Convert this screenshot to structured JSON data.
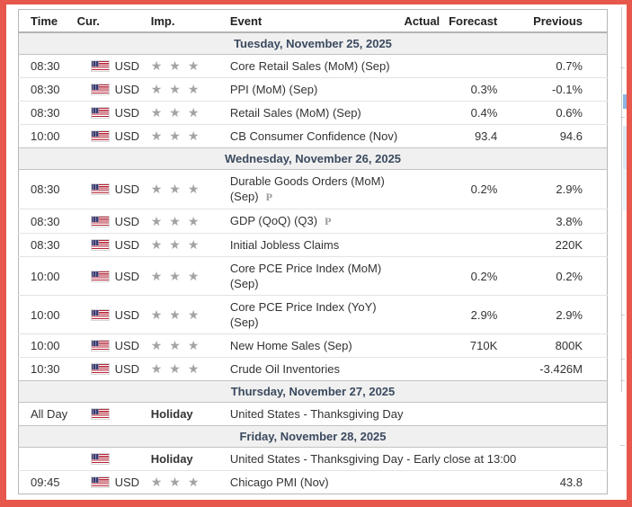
{
  "colors": {
    "frame_border": "#e8574b",
    "day_header_bg": "#f0f0f0",
    "day_header_text": "#3b4a5f",
    "star_gray": "#a3a3a3",
    "flag_red": "#b22234",
    "flag_blue": "#3c3b6e"
  },
  "icons": {
    "star": "★",
    "preliminary": "P",
    "flag": "us-flag"
  },
  "table": {
    "columns": [
      {
        "label": "Time"
      },
      {
        "label": "Cur."
      },
      {
        "label": "Imp."
      },
      {
        "label": "Event"
      },
      {
        "label": "Actual"
      },
      {
        "label": "Forecast"
      },
      {
        "label": "Previous"
      }
    ],
    "groups": [
      {
        "date": "Tuesday, November 25, 2025",
        "rows": [
          {
            "time": "08:30",
            "flag": true,
            "cur": "USD",
            "stars": 3,
            "event": "Core Retail Sales (MoM) (Sep)",
            "actual": "",
            "forecast": "",
            "previous": "0.7%"
          },
          {
            "time": "08:30",
            "flag": true,
            "cur": "USD",
            "stars": 3,
            "event": "PPI (MoM) (Sep)",
            "actual": "",
            "forecast": "0.3%",
            "previous": "-0.1%"
          },
          {
            "time": "08:30",
            "flag": true,
            "cur": "USD",
            "stars": 3,
            "event": "Retail Sales (MoM) (Sep)",
            "actual": "",
            "forecast": "0.4%",
            "previous": "0.6%"
          },
          {
            "time": "10:00",
            "flag": true,
            "cur": "USD",
            "stars": 3,
            "event": "CB Consumer Confidence (Nov)",
            "actual": "",
            "forecast": "93.4",
            "previous": "94.6"
          }
        ]
      },
      {
        "date": "Wednesday, November 26, 2025",
        "rows": [
          {
            "time": "08:30",
            "flag": true,
            "cur": "USD",
            "stars": 3,
            "event": "Durable Goods Orders (MoM) (Sep)",
            "prelim": true,
            "actual": "",
            "forecast": "0.2%",
            "previous": "2.9%"
          },
          {
            "time": "08:30",
            "flag": true,
            "cur": "USD",
            "stars": 3,
            "event": "GDP (QoQ) (Q3)",
            "prelim": true,
            "actual": "",
            "forecast": "",
            "previous": "3.8%"
          },
          {
            "time": "08:30",
            "flag": true,
            "cur": "USD",
            "stars": 3,
            "event": "Initial Jobless Claims",
            "actual": "",
            "forecast": "",
            "previous": "220K"
          },
          {
            "time": "10:00",
            "flag": true,
            "cur": "USD",
            "stars": 3,
            "event": "Core PCE Price Index (MoM) (Sep)",
            "actual": "",
            "forecast": "0.2%",
            "previous": "0.2%"
          },
          {
            "time": "10:00",
            "flag": true,
            "cur": "USD",
            "stars": 3,
            "event": "Core PCE Price Index (YoY) (Sep)",
            "actual": "",
            "forecast": "2.9%",
            "previous": "2.9%"
          },
          {
            "time": "10:00",
            "flag": true,
            "cur": "USD",
            "stars": 3,
            "event": "New Home Sales (Sep)",
            "actual": "",
            "forecast": "710K",
            "previous": "800K"
          },
          {
            "time": "10:30",
            "flag": true,
            "cur": "USD",
            "stars": 3,
            "event": "Crude Oil Inventories",
            "actual": "",
            "forecast": "",
            "previous": "-3.426M"
          }
        ]
      },
      {
        "date": "Thursday, November 27, 2025",
        "rows": [
          {
            "time": "All Day",
            "flag": true,
            "cur": "",
            "holiday": "Holiday",
            "event": "United States - Thanksgiving Day"
          }
        ]
      },
      {
        "date": "Friday, November 28, 2025",
        "rows": [
          {
            "time": "",
            "flag": true,
            "cur": "",
            "holiday": "Holiday",
            "event": "United States - Thanksgiving Day - Early close at 13:00"
          },
          {
            "time": "09:45",
            "flag": true,
            "cur": "USD",
            "stars": 3,
            "event": "Chicago PMI (Nov)",
            "actual": "",
            "forecast": "",
            "previous": "43.8"
          }
        ]
      }
    ]
  }
}
